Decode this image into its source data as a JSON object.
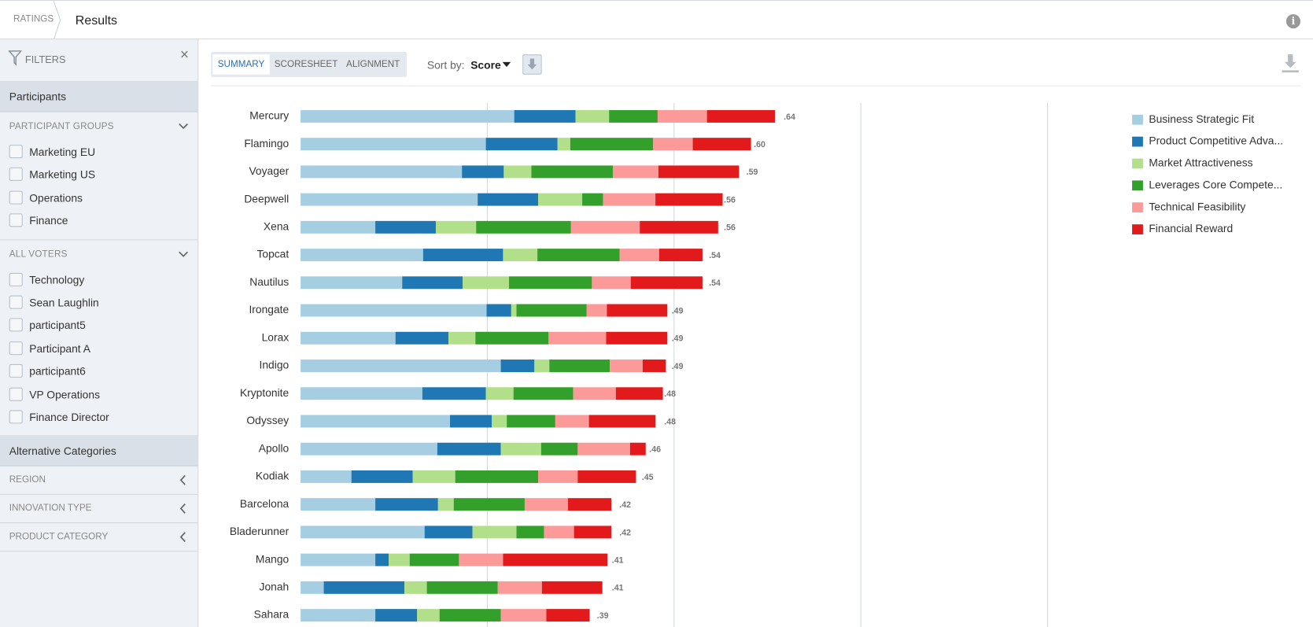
{
  "header": {
    "breadcrumb": "RATINGS",
    "title": "Results"
  },
  "sidebar": {
    "filters_label": "FILTERS",
    "participants": {
      "title": "Participants",
      "groups": [
        {
          "label": "PARTICIPANT GROUPS",
          "items": [
            "Marketing EU",
            "Marketing US",
            "Operations",
            "Finance"
          ]
        },
        {
          "label": "ALL VOTERS",
          "items": [
            "Technology",
            "Sean Laughlin",
            "participant5",
            "Participant A",
            "participant6",
            "VP Operations",
            "Finance Director"
          ]
        }
      ]
    },
    "alternative_categories": {
      "title": "Alternative Categories",
      "groups": [
        "REGION",
        "INNOVATION TYPE",
        "PRODUCT CATEGORY"
      ]
    }
  },
  "toolbar": {
    "tabs": [
      "SUMMARY",
      "SCORESHEET",
      "ALIGNMENT"
    ],
    "sort_label": "Sort by:",
    "sort_value": "Score"
  },
  "chart_data": {
    "type": "stacked_bar_horizontal",
    "categories": [
      "Mercury",
      "Flamingo",
      "Voyager",
      "Deepwell",
      "Xena",
      "Topcat",
      "Nautilus",
      "Irongate",
      "Lorax",
      "Indigo",
      "Kryptonite",
      "Odyssey",
      "Apollo",
      "Kodiak",
      "Barcelona",
      "Bladerunner",
      "Mango",
      "Jonah",
      "Sahara"
    ],
    "series": [
      {
        "name": "Business Strategic Fit",
        "color": "#a6cee3",
        "values": [
          0.286,
          0.248,
          0.216,
          0.237,
          0.1,
          0.164,
          0.136,
          0.249,
          0.127,
          0.268,
          0.163,
          0.2,
          0.183,
          0.068,
          0.1,
          0.166,
          0.1,
          0.031,
          0.1
        ]
      },
      {
        "name": "Product Competitive Adva...",
        "color": "#1f78b4",
        "values": [
          0.082,
          0.096,
          0.056,
          0.081,
          0.081,
          0.107,
          0.081,
          0.033,
          0.071,
          0.045,
          0.085,
          0.056,
          0.085,
          0.082,
          0.084,
          0.064,
          0.018,
          0.108,
          0.056
        ]
      },
      {
        "name": "Market Attractiveness",
        "color": "#b2df8a",
        "values": [
          0.045,
          0.017,
          0.037,
          0.059,
          0.054,
          0.046,
          0.062,
          0.007,
          0.036,
          0.02,
          0.037,
          0.02,
          0.054,
          0.057,
          0.021,
          0.059,
          0.028,
          0.03,
          0.03
        ]
      },
      {
        "name": "Leverages Core Compete...",
        "color": "#33a02c",
        "values": [
          0.065,
          0.111,
          0.109,
          0.028,
          0.127,
          0.11,
          0.111,
          0.094,
          0.098,
          0.081,
          0.08,
          0.065,
          0.049,
          0.111,
          0.095,
          0.037,
          0.066,
          0.095,
          0.082
        ]
      },
      {
        "name": "Technical Feasibility",
        "color": "#fb9a99",
        "values": [
          0.066,
          0.053,
          0.061,
          0.07,
          0.092,
          0.053,
          0.052,
          0.027,
          0.077,
          0.044,
          0.057,
          0.045,
          0.07,
          0.053,
          0.058,
          0.04,
          0.059,
          0.059,
          0.061
        ]
      },
      {
        "name": "Financial Reward",
        "color": "#e31a1c",
        "values": [
          0.091,
          0.078,
          0.108,
          0.09,
          0.105,
          0.058,
          0.096,
          0.081,
          0.082,
          0.031,
          0.063,
          0.089,
          0.021,
          0.078,
          0.058,
          0.05,
          0.14,
          0.081,
          0.058
        ]
      }
    ],
    "totals": [
      0.64,
      0.6,
      0.59,
      0.56,
      0.56,
      0.54,
      0.54,
      0.49,
      0.49,
      0.49,
      0.48,
      0.48,
      0.46,
      0.45,
      0.42,
      0.42,
      0.41,
      0.41,
      0.39
    ],
    "total_labels": [
      ".64",
      ".60",
      ".59",
      ".56",
      ".56",
      ".54",
      ".54",
      ".49",
      ".49",
      ".49",
      ".48",
      ".48",
      ".46",
      ".45",
      ".42",
      ".42",
      ".41",
      ".41",
      ".39"
    ],
    "xlim": [
      0,
      1
    ],
    "xticks": [
      0.25,
      0.5,
      0.75,
      1
    ],
    "grid": true,
    "legend": "right"
  }
}
